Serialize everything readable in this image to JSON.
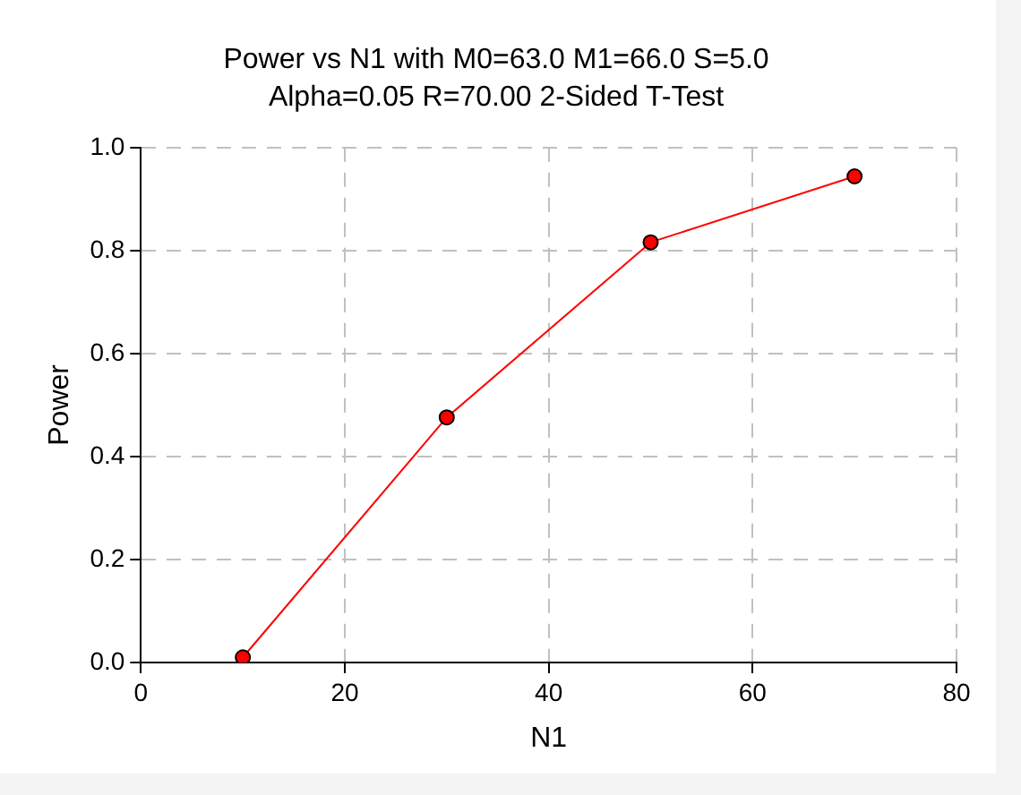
{
  "chart_data": {
    "type": "line",
    "title": "Power vs N1 with M0=63.0 M1=66.0 S=5.0",
    "subtitle": "Alpha=0.05 R=70.00 2-Sided T-Test",
    "xlabel": "N1",
    "ylabel": "Power",
    "x": [
      10,
      30,
      50,
      70
    ],
    "series": [
      {
        "color": "#ff0000",
        "values": [
          0.01,
          0.476,
          0.816,
          0.944
        ]
      }
    ],
    "xlim": [
      0,
      80
    ],
    "xticks": [
      0,
      20,
      40,
      60,
      80
    ],
    "ylim": [
      0,
      1
    ],
    "yticks": [
      {
        "value": 0,
        "label": "0.0"
      },
      {
        "value": 0.2,
        "label": "0.2"
      },
      {
        "value": 0.4,
        "label": "0.4"
      },
      {
        "value": 0.6,
        "label": "0.6"
      },
      {
        "value": 0.8,
        "label": "0.8"
      },
      {
        "value": 1,
        "label": "1.0"
      }
    ],
    "grid": true,
    "marker": "circle",
    "line_style": "solid",
    "legend": false
  }
}
